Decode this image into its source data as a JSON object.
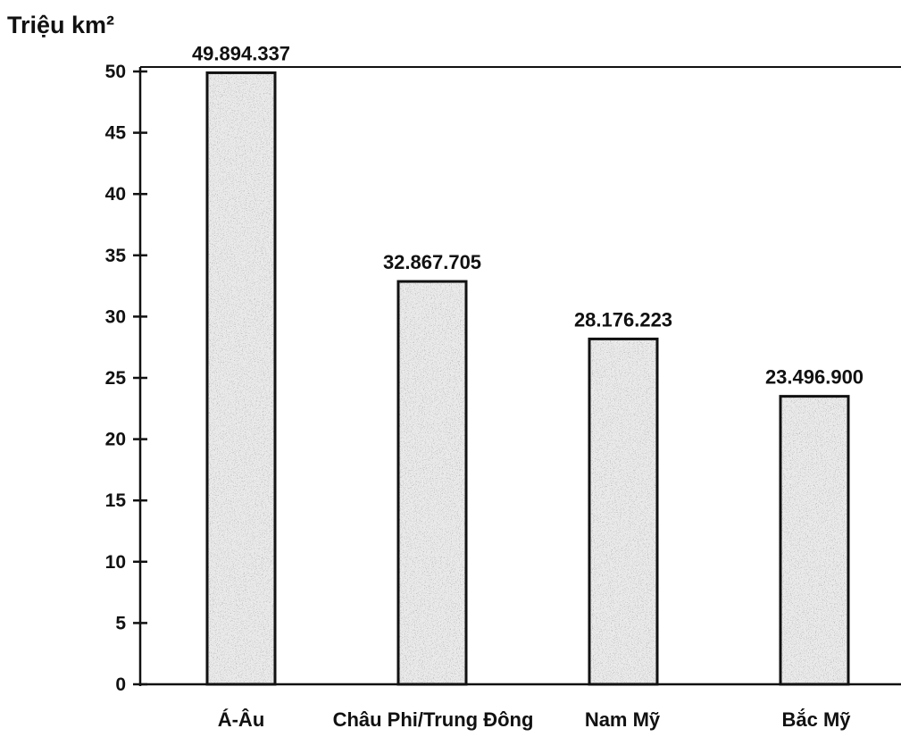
{
  "chart_data": {
    "type": "bar",
    "ylabel": "Triệu km²",
    "xlabel": "",
    "categories": [
      "Á-Âu",
      "Châu Phi/Trung Đông",
      "Nam Mỹ",
      "Bắc Mỹ"
    ],
    "values": [
      49.894337,
      32.867705,
      28.176223,
      23.4969
    ],
    "data_labels": [
      "49.894.337",
      "32.867.705",
      "28.176.223",
      "23.496.900"
    ],
    "yticks": [
      "0",
      "5",
      "10",
      "15",
      "20",
      "25",
      "30",
      "35",
      "40",
      "45",
      "50"
    ],
    "ylim": [
      0,
      50
    ],
    "grid": false,
    "bar_fill": "stippled gray",
    "colors": {
      "bar_edge": "#111111",
      "bar_base": "#d2d2d2",
      "stipple": "#555555",
      "axis": "#111111",
      "text": "#111111"
    }
  }
}
